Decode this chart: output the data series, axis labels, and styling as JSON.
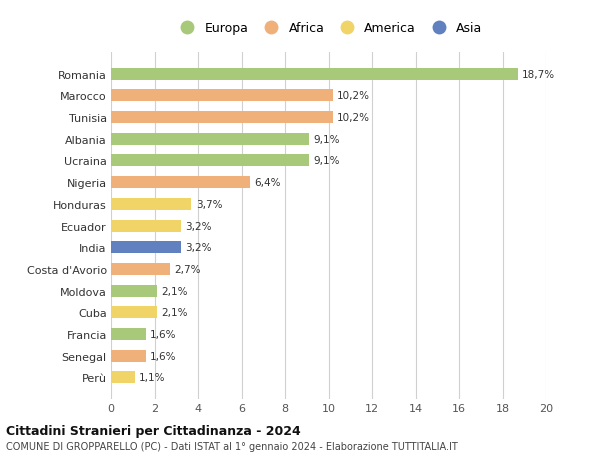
{
  "countries": [
    "Romania",
    "Marocco",
    "Tunisia",
    "Albania",
    "Ucraina",
    "Nigeria",
    "Honduras",
    "Ecuador",
    "India",
    "Costa d'Avorio",
    "Moldova",
    "Cuba",
    "Francia",
    "Senegal",
    "Perù"
  ],
  "values": [
    18.7,
    10.2,
    10.2,
    9.1,
    9.1,
    6.4,
    3.7,
    3.2,
    3.2,
    2.7,
    2.1,
    2.1,
    1.6,
    1.6,
    1.1
  ],
  "labels": [
    "18,7%",
    "10,2%",
    "10,2%",
    "9,1%",
    "9,1%",
    "6,4%",
    "3,7%",
    "3,2%",
    "3,2%",
    "2,7%",
    "2,1%",
    "2,1%",
    "1,6%",
    "1,6%",
    "1,1%"
  ],
  "continents": [
    "Europa",
    "Africa",
    "Africa",
    "Europa",
    "Europa",
    "Africa",
    "America",
    "America",
    "Asia",
    "Africa",
    "Europa",
    "America",
    "Europa",
    "Africa",
    "America"
  ],
  "colors": {
    "Europa": "#a8c87a",
    "Africa": "#f0b07a",
    "America": "#f0d468",
    "Asia": "#6080c0"
  },
  "legend_order": [
    "Europa",
    "Africa",
    "America",
    "Asia"
  ],
  "title": "Cittadini Stranieri per Cittadinanza - 2024",
  "subtitle": "COMUNE DI GROPPARELLO (PC) - Dati ISTAT al 1° gennaio 2024 - Elaborazione TUTTITALIA.IT",
  "xlim": [
    0,
    20
  ],
  "xticks": [
    0,
    2,
    4,
    6,
    8,
    10,
    12,
    14,
    16,
    18,
    20
  ],
  "background_color": "#ffffff",
  "bar_height": 0.55,
  "grid_color": "#d0d0d0"
}
